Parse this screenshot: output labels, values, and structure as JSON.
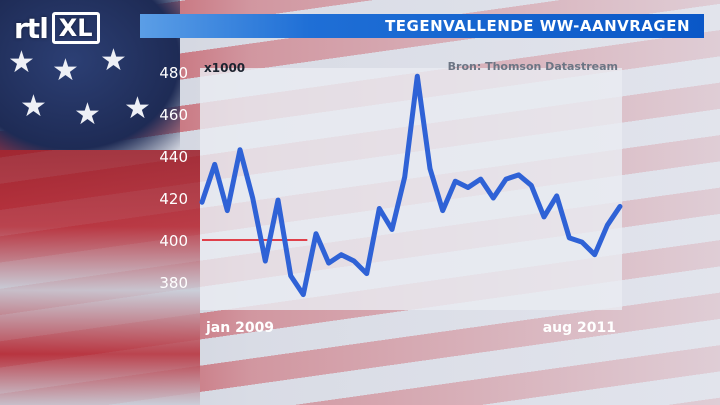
{
  "header": {
    "logo_rtl": "rtl",
    "logo_xl": "XL",
    "title": "TEGENVALLENDE WW-AANVRAGEN"
  },
  "colors": {
    "title_bar": "#0a57c7",
    "line": "#2f62d6",
    "reference_line": "#e0404a",
    "plot_panel": "#e9ebf2"
  },
  "chart_data": {
    "type": "line",
    "title": "TEGENVALLENDE WW-AANVRAGEN",
    "unit_label": "x1000",
    "source": "Bron: Thomson Datastream",
    "x_start_label": "jan 2009",
    "x_end_label": "aug 2011",
    "ylim": [
      370,
      480
    ],
    "yticks": [
      380,
      400,
      420,
      440,
      460,
      480
    ],
    "grid": false,
    "reference_line": {
      "y": 400,
      "x_from_index": 0,
      "x_to_index": 8
    },
    "values": [
      418,
      436,
      414,
      443,
      420,
      390,
      419,
      383,
      374,
      403,
      389,
      393,
      390,
      384,
      415,
      405,
      430,
      478,
      434,
      414,
      428,
      425,
      429,
      420,
      429,
      431,
      426,
      411,
      421,
      401,
      399,
      393,
      407,
      416
    ]
  }
}
